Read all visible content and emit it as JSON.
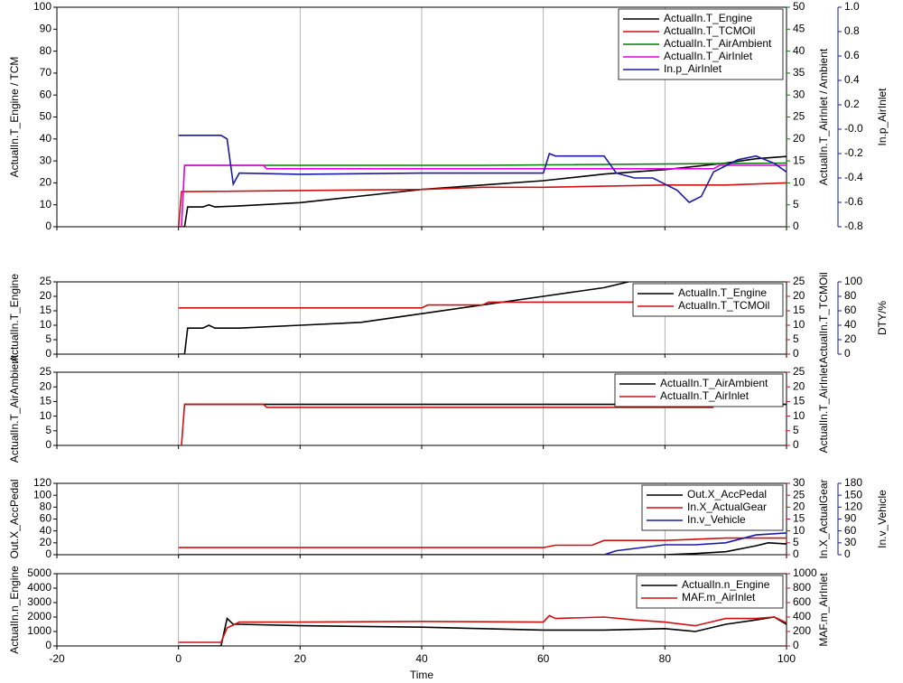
{
  "chart_data": [
    {
      "type": "line",
      "xlim": [
        -20,
        100
      ],
      "xticks": [
        -20,
        0,
        20,
        40,
        60,
        80,
        100
      ],
      "grid": true,
      "legend": "upper right",
      "ylabel": "ActualIn.T_Engine / TCM",
      "ylim": [
        0,
        100
      ],
      "yticks": [
        0,
        10,
        20,
        30,
        40,
        50,
        60,
        70,
        80,
        90,
        100
      ],
      "y2label": "ActualIn.T_AirInlet / Ambient",
      "y2color": "#008000",
      "y2lim": [
        0,
        50
      ],
      "y2ticks": [
        0,
        5,
        10,
        15,
        20,
        25,
        30,
        35,
        40,
        45,
        50
      ],
      "y3label": "In.p_AirInlet",
      "y3color": "#1a1aa8",
      "y3lim": [
        -0.8,
        1
      ],
      "y3ticks": [
        -0.8,
        -0.6,
        -0.4,
        -0.2,
        {
          "value": 0,
          "label": "-0.0"
        },
        0.2,
        0.4,
        0.6,
        0.8,
        {
          "value": 1,
          "label": "1.0"
        }
      ],
      "series": [
        {
          "name": "ActualIn.T_Engine",
          "color": "#000000",
          "axis": "y",
          "x": [
            0,
            1,
            1.5,
            4,
            5,
            6,
            10,
            20,
            30,
            40,
            50,
            60,
            70,
            80,
            90,
            95,
            100
          ],
          "values": [
            0,
            0,
            9,
            9,
            10,
            9,
            9.5,
            11,
            14,
            17,
            19,
            21,
            24,
            26,
            29,
            31,
            32
          ]
        },
        {
          "name": "ActualIn.T_TCMOil",
          "color": "#d01010",
          "axis": "y",
          "x": [
            0,
            0.5,
            1,
            40,
            50,
            60,
            80,
            90,
            100
          ],
          "values": [
            0,
            16,
            16,
            17,
            18,
            18,
            19,
            19,
            20
          ]
        },
        {
          "name": "ActualIn.T_AirAmbient",
          "color": "#008000",
          "axis": "y2",
          "x": [
            1,
            50,
            100
          ],
          "values": [
            14,
            14,
            14.5
          ]
        },
        {
          "name": "ActualIn.T_AirInlet",
          "color": "#e000e0",
          "axis": "y2",
          "x": [
            0.5,
            1,
            14,
            14.5,
            88,
            89,
            100
          ],
          "values": [
            0,
            14,
            14,
            13.2,
            13.2,
            14,
            14
          ]
        },
        {
          "name": "In.p_AirInlet",
          "color": "#1a1aa8",
          "axis": "y3",
          "x": [
            0,
            7,
            8,
            9,
            10,
            20,
            40,
            60,
            61,
            62,
            70,
            72,
            75,
            78,
            82,
            84,
            86,
            88,
            90,
            92,
            95,
            98,
            100
          ],
          "values": [
            -0.05,
            -0.05,
            -0.08,
            -0.45,
            -0.36,
            -0.37,
            -0.36,
            -0.36,
            -0.2,
            -0.22,
            -0.22,
            -0.36,
            -0.4,
            -0.4,
            -0.5,
            -0.6,
            -0.55,
            -0.35,
            -0.3,
            -0.25,
            -0.22,
            -0.28,
            -0.35
          ]
        }
      ]
    },
    {
      "type": "line",
      "xlim": [
        -20,
        100
      ],
      "xticks": [
        -20,
        0,
        20,
        40,
        60,
        80,
        100
      ],
      "grid": true,
      "legend": "upper right",
      "ylabel": "ActualIn.T_Engine",
      "ylim": [
        0,
        25
      ],
      "yticks": [
        0,
        5,
        10,
        15,
        20,
        25
      ],
      "y2label": "ActualIn.T_TCMOil",
      "y2color": "#d01010",
      "y2lim": [
        0,
        25
      ],
      "y2ticks": [
        0,
        5,
        10,
        15,
        20,
        25
      ],
      "y3label": "DTY/%",
      "y3color": "#1a1aa8",
      "y3lim": [
        0,
        100
      ],
      "y3ticks": [
        0,
        20,
        40,
        60,
        80,
        100
      ],
      "series": [
        {
          "name": "ActualIn.T_Engine",
          "color": "#000000",
          "axis": "y",
          "x": [
            0,
            1,
            1.5,
            4,
            5,
            6,
            10,
            20,
            30,
            40,
            50,
            60,
            70,
            74
          ],
          "values": [
            0,
            0,
            9,
            9,
            10,
            9,
            9,
            10,
            11,
            14,
            17,
            20,
            23,
            25
          ]
        },
        {
          "name": "ActualIn.T_TCMOil",
          "color": "#d01010",
          "axis": "y2",
          "x": [
            0,
            40,
            41,
            50,
            51,
            80
          ],
          "values": [
            16,
            16,
            17,
            17,
            18,
            18
          ]
        }
      ]
    },
    {
      "type": "line",
      "xlim": [
        -20,
        100
      ],
      "xticks": [
        -20,
        0,
        20,
        40,
        60,
        80,
        100
      ],
      "grid": true,
      "legend": "upper right",
      "ylabel": "ActualIn.T_AirAmbient",
      "ylim": [
        0,
        25
      ],
      "yticks": [
        0,
        5,
        10,
        15,
        20,
        25
      ],
      "y2label": "ActualIn.T_AirInlet",
      "y2color": "#d01010",
      "y2lim": [
        0,
        25
      ],
      "y2ticks": [
        0,
        5,
        10,
        15,
        20,
        25
      ],
      "series": [
        {
          "name": "ActualIn.T_AirAmbient",
          "color": "#000000",
          "axis": "y",
          "x": [
            1,
            100
          ],
          "values": [
            14,
            14
          ]
        },
        {
          "name": "ActualIn.T_AirInlet",
          "color": "#d01010",
          "axis": "y2",
          "x": [
            0.5,
            1,
            14,
            14.5,
            88
          ],
          "values": [
            0,
            14,
            14,
            13,
            13
          ]
        }
      ]
    },
    {
      "type": "line",
      "xlim": [
        -20,
        100
      ],
      "xticks": [
        -20,
        0,
        20,
        40,
        60,
        80,
        100
      ],
      "grid": true,
      "legend": "upper right",
      "ylabel": "Out.X_AccPedal",
      "ylim": [
        0,
        120
      ],
      "yticks": [
        0,
        20,
        40,
        60,
        80,
        100,
        120
      ],
      "y2label": "In.X_ActualGear",
      "y2color": "#d01010",
      "y2lim": [
        0,
        30
      ],
      "y2ticks": [
        0,
        5,
        10,
        15,
        20,
        25,
        30
      ],
      "y3label": "In.v_Vehicle",
      "y3color": "#1a1aa8",
      "y3lim": [
        0,
        180
      ],
      "y3ticks": [
        0,
        30,
        60,
        90,
        120,
        150,
        180
      ],
      "series": [
        {
          "name": "Out.X_AccPedal",
          "color": "#000000",
          "axis": "y",
          "x": [
            0,
            80,
            85,
            90,
            95,
            97,
            100
          ],
          "values": [
            0,
            0,
            2,
            5,
            15,
            20,
            18
          ]
        },
        {
          "name": "In.X_ActualGear",
          "color": "#d01010",
          "axis": "y2",
          "x": [
            0,
            60,
            62,
            68,
            70,
            80,
            90,
            100
          ],
          "values": [
            3,
            3,
            4,
            4,
            6,
            6,
            7,
            7
          ]
        },
        {
          "name": "In.v_Vehicle",
          "color": "#1a1aa8",
          "axis": "y3",
          "x": [
            70,
            72,
            80,
            85,
            90,
            95,
            100
          ],
          "values": [
            0,
            10,
            25,
            25,
            30,
            50,
            55
          ]
        }
      ]
    },
    {
      "type": "line",
      "xlim": [
        -20,
        100
      ],
      "xticks": [
        -20,
        0,
        20,
        40,
        60,
        80,
        100
      ],
      "xlabel": "Time",
      "grid": true,
      "legend": "upper right",
      "ylabel": "ActualIn.n_Engine",
      "ylim": [
        0,
        5000
      ],
      "yticks": [
        0,
        1000,
        2000,
        3000,
        4000,
        5000
      ],
      "y2label": "MAF.m_AirInlet",
      "y2color": "#d01010",
      "y2lim": [
        0,
        1000
      ],
      "y2ticks": [
        0,
        200,
        400,
        600,
        800,
        1000
      ],
      "series": [
        {
          "name": "ActualIn.n_Engine",
          "color": "#000000",
          "axis": "y",
          "x": [
            0,
            7,
            8,
            9,
            10,
            20,
            40,
            60,
            70,
            80,
            85,
            90,
            95,
            98,
            100
          ],
          "values": [
            0,
            0,
            1900,
            1500,
            1500,
            1400,
            1300,
            1100,
            1100,
            1200,
            1000,
            1500,
            1800,
            2000,
            1500
          ]
        },
        {
          "name": "MAF.m_AirInlet",
          "color": "#d01010",
          "axis": "y2",
          "x": [
            0,
            7,
            8,
            10,
            20,
            40,
            60,
            61,
            62,
            70,
            75,
            80,
            85,
            90,
            95,
            98,
            100
          ],
          "values": [
            50,
            50,
            250,
            330,
            330,
            340,
            330,
            420,
            380,
            400,
            360,
            330,
            280,
            380,
            380,
            400,
            320
          ]
        }
      ]
    }
  ]
}
